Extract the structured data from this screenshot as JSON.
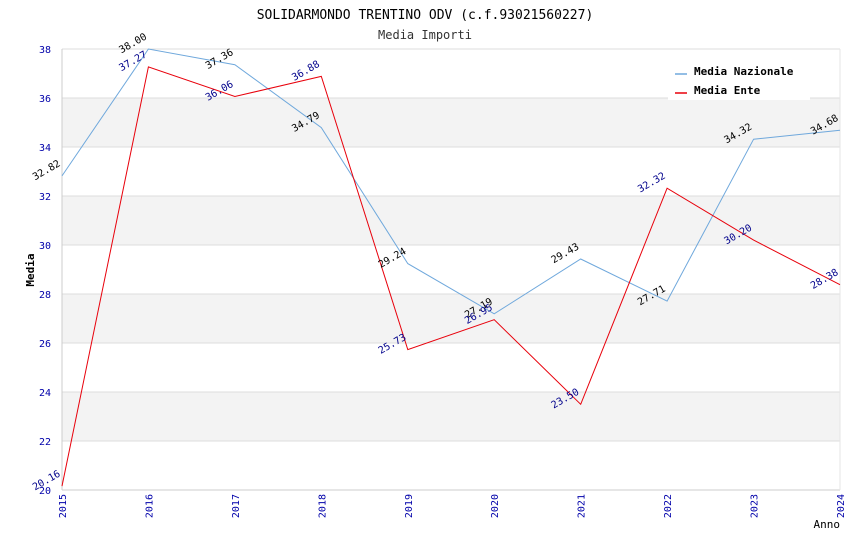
{
  "chart_data": {
    "type": "line",
    "title": "SOLIDARMONDO TRENTINO ODV (c.f.93021560227)",
    "subtitle": "Media Importi",
    "xlabel": "Anno",
    "ylabel": "Media",
    "categories": [
      "2015",
      "2016",
      "2017",
      "2018",
      "2019",
      "2020",
      "2021",
      "2022",
      "2023",
      "2024"
    ],
    "ylim": [
      20,
      38
    ],
    "yticks": [
      "20",
      "22",
      "24",
      "26",
      "28",
      "30",
      "32",
      "34",
      "36",
      "38"
    ],
    "grid": true,
    "legend_position": "top-right",
    "series": [
      {
        "name": "Media Nazionale",
        "color": "#6fa8dc",
        "values": [
          32.82,
          38.0,
          37.36,
          34.79,
          29.24,
          27.19,
          29.43,
          27.71,
          34.32,
          34.68
        ],
        "labels": [
          "32.82",
          "38.00",
          "37.36",
          "34.79",
          "29.24",
          "27.19",
          "29.43",
          "27.71",
          "34.32",
          "34.68"
        ]
      },
      {
        "name": "Media Ente",
        "color": "#e8000b",
        "values": [
          20.16,
          37.27,
          36.06,
          36.88,
          25.73,
          26.95,
          23.5,
          32.32,
          30.2,
          28.38
        ],
        "labels": [
          "20.16",
          "37.27",
          "36.06",
          "36.88",
          "25.73",
          "26.95",
          "23.50",
          "32.32",
          "30.20",
          "28.38"
        ]
      }
    ]
  }
}
